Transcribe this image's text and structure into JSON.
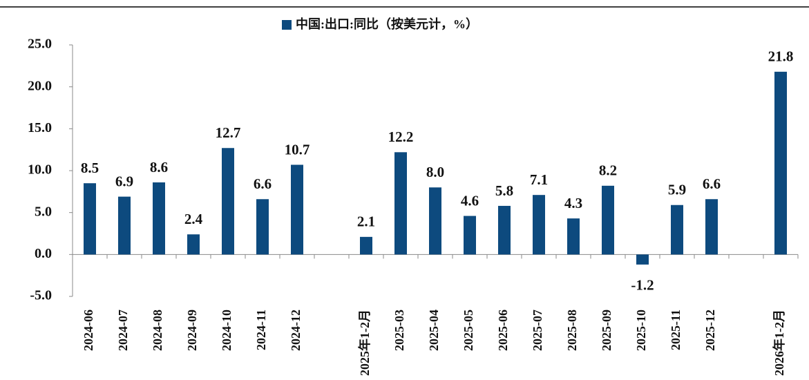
{
  "chart_data": {
    "type": "bar",
    "legend": "中国:出口:同比（按美元计，%）",
    "categories": [
      "2024-06",
      "2024-07",
      "2024-08",
      "2024-09",
      "2024-10",
      "2024-11",
      "2024-12",
      null,
      "2025年1-2月",
      "2025-03",
      "2025-04",
      "2025-05",
      "2025-06",
      "2025-07",
      "2025-08",
      "2025-09",
      "2025-10",
      "2025-11",
      "2025-12",
      null,
      "2026年1-2月"
    ],
    "values": [
      8.5,
      6.9,
      8.6,
      2.4,
      12.7,
      6.6,
      10.7,
      null,
      2.1,
      12.2,
      8.0,
      4.6,
      5.8,
      7.1,
      4.3,
      8.2,
      -1.2,
      5.9,
      6.6,
      null,
      21.8
    ],
    "value_labels": [
      "8.5",
      "6.9",
      "8.6",
      "2.4",
      "12.7",
      "6.6",
      "10.7",
      null,
      "2.1",
      "12.2",
      "8.0",
      "4.6",
      "5.8",
      "7.1",
      "4.3",
      "8.2",
      "-1.2",
      "5.9",
      "6.6",
      null,
      "21.8"
    ],
    "color": "#0d4a7e",
    "negative_label_color": "#e8141b",
    "ylim": [
      -5,
      25
    ],
    "yticks": [
      {
        "value": -5,
        "label": "-5.0"
      },
      {
        "value": 0,
        "label": "0.0"
      },
      {
        "value": 5,
        "label": "5.0"
      },
      {
        "value": 10,
        "label": "10.0"
      },
      {
        "value": 15,
        "label": "15.0"
      },
      {
        "value": 20,
        "label": "20.0"
      },
      {
        "value": 25,
        "label": "25.0"
      }
    ],
    "grid": false
  }
}
